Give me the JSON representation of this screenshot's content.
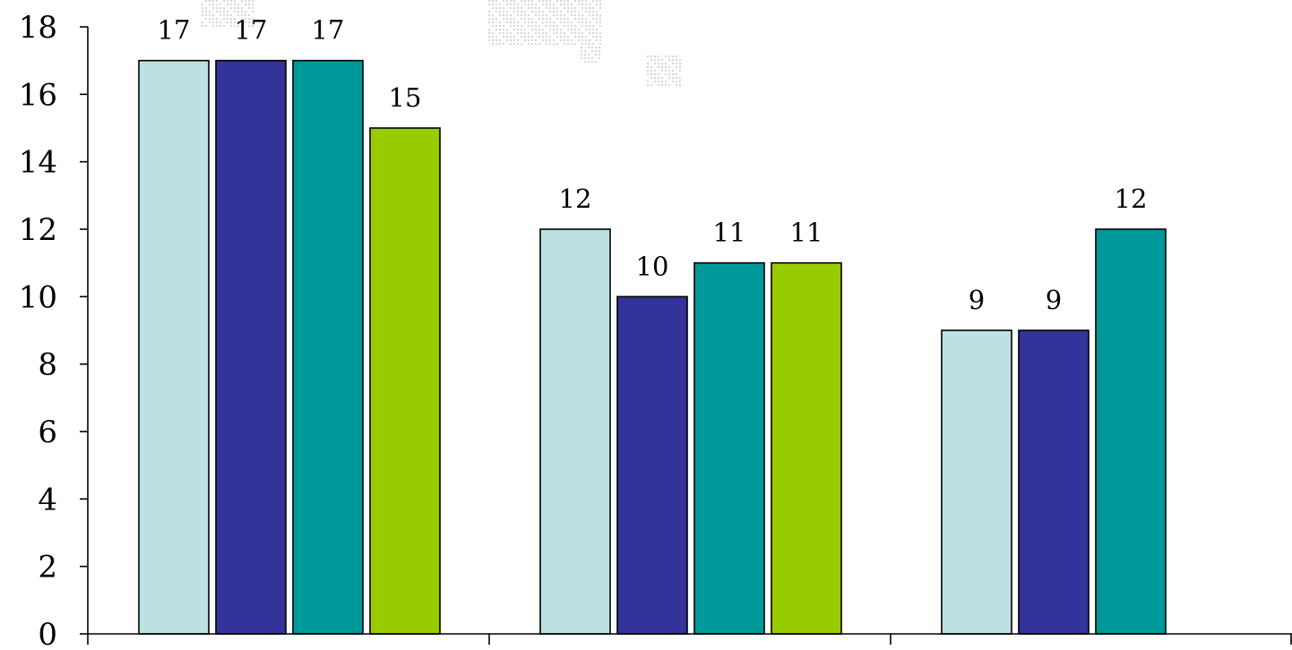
{
  "chart_data": {
    "type": "bar",
    "title": "",
    "xlabel": "",
    "ylabel": "",
    "ylim": [
      0,
      18
    ],
    "yticks": [
      0,
      2,
      4,
      6,
      8,
      10,
      12,
      14,
      16,
      18
    ],
    "grid": false,
    "legend": "none",
    "categories": [
      "",
      "",
      ""
    ],
    "series": [
      {
        "color": "#bde0e3",
        "values": [
          17,
          12,
          9
        ]
      },
      {
        "color": "#343399",
        "values": [
          17,
          10,
          9
        ]
      },
      {
        "color": "#00999a",
        "values": [
          17,
          11,
          12
        ]
      },
      {
        "color": "#99cc00",
        "values": [
          15,
          11,
          null
        ]
      }
    ],
    "data_labels": true
  }
}
